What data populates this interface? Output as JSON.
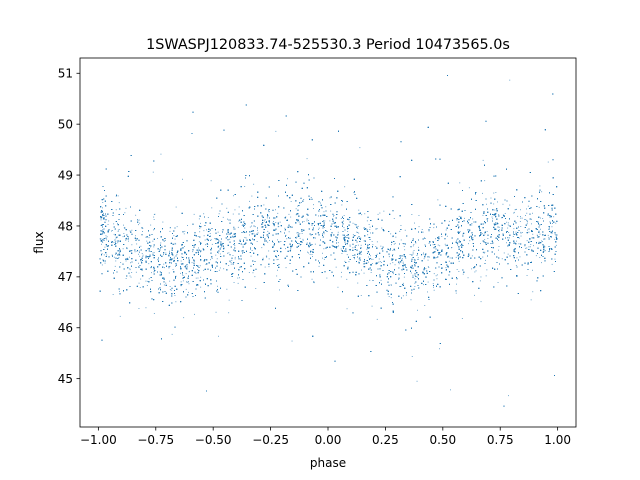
{
  "chart_data": {
    "type": "scatter",
    "title": "1SWASPJ120833.74-525530.3 Period 10473565.0s",
    "xlabel": "phase",
    "ylabel": "flux",
    "xlim": [
      -1.08,
      1.08
    ],
    "ylim": [
      44.05,
      51.3
    ],
    "x_ticks": [
      -1.0,
      -0.75,
      -0.5,
      -0.25,
      0.0,
      0.25,
      0.5,
      0.75,
      1.0
    ],
    "x_tick_labels": [
      "−1.00",
      "−0.75",
      "−0.50",
      "−0.25",
      "0.00",
      "0.25",
      "0.50",
      "0.75",
      "1.00"
    ],
    "y_ticks": [
      45,
      46,
      47,
      48,
      49,
      50,
      51
    ],
    "y_tick_labels": [
      "45",
      "46",
      "47",
      "48",
      "49",
      "50",
      "51"
    ],
    "grid": false,
    "point_color": "#1f77b4",
    "series": [
      {
        "x_range": [
          -1.0,
          1.0
        ],
        "n_points": 14000,
        "phase_profile": {
          "phase": [
            0.0,
            0.1,
            0.2,
            0.3,
            0.4,
            0.5,
            0.6,
            0.7,
            0.8,
            0.9,
            1.0
          ],
          "median_flux": [
            47.9,
            47.7,
            47.4,
            47.3,
            47.3,
            47.5,
            47.7,
            47.9,
            47.8,
            47.9,
            47.9
          ]
        },
        "typical_spread": 0.45,
        "min_flux": 44.4,
        "max_flux": 51.0
      }
    ]
  }
}
